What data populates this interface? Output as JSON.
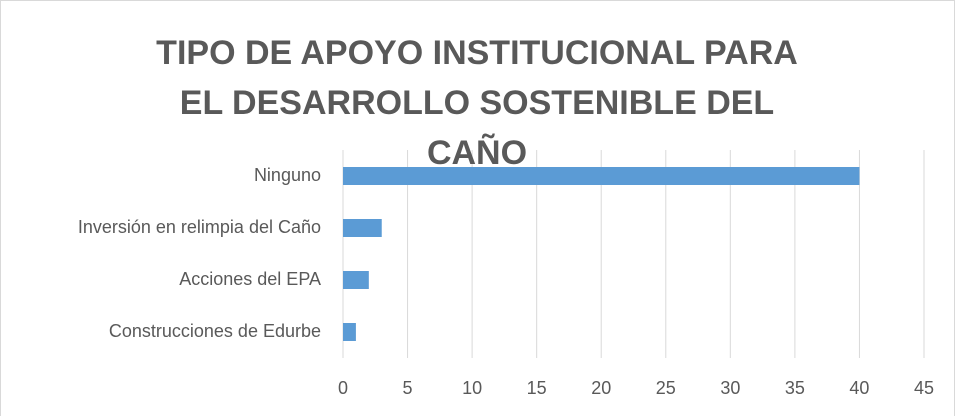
{
  "chart_data": {
    "type": "bar",
    "orientation": "horizontal",
    "title": "TIPO DE APOYO INSTITUCIONAL PARA EL DESARROLLO SOSTENIBLE DEL CAÑO",
    "categories": [
      "Ninguno",
      "Inversión en relimpia del Caño",
      "Acciones del EPA",
      "Construcciones de Edurbe"
    ],
    "values": [
      40,
      3,
      2,
      1
    ],
    "color": "#5b9bd5",
    "xlim": [
      0,
      45
    ],
    "xticks": [
      0,
      5,
      10,
      15,
      20,
      25,
      30,
      35,
      40,
      45
    ],
    "grid": true
  }
}
